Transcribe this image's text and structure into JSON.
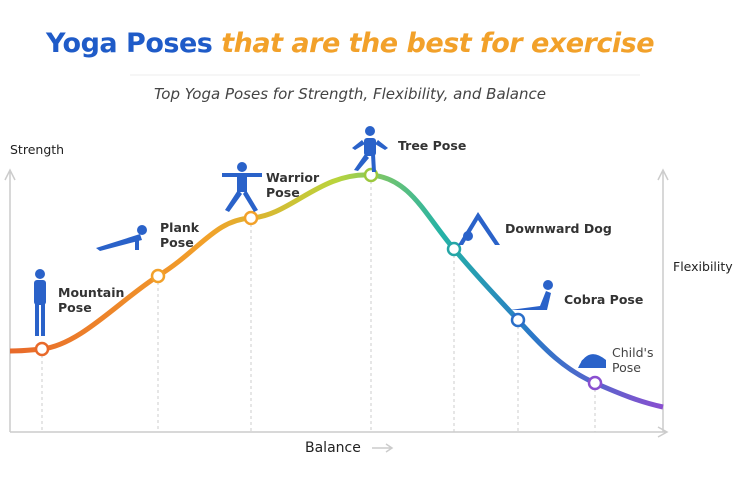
{
  "header": {
    "title_main": "Yoga Poses",
    "title_accent": "that are the best for exercise",
    "subtitle": "Top Yoga Poses for Strength, Flexibility, and Balance"
  },
  "axes": {
    "y": "Strength",
    "y2": "Flexibility",
    "x": "Balance"
  },
  "poses": [
    {
      "label": "Mountain Pose"
    },
    {
      "label": "Plank Pose"
    },
    {
      "label": "Warrior Pose"
    },
    {
      "label": "Tree Pose"
    },
    {
      "label": "Downward Dog"
    },
    {
      "label": "Cobra Pose"
    },
    {
      "label": "Child's Pose"
    }
  ]
}
